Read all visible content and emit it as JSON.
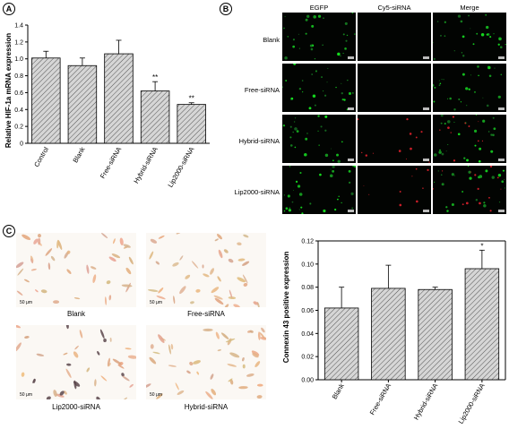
{
  "panels": {
    "a": "A",
    "b": "B",
    "c": "C"
  },
  "panel_b": {
    "columns": [
      "EGFP",
      "Cy5-siRNA",
      "Merge"
    ],
    "rows": [
      "Blank",
      "Free-siRNA",
      "Hybrid-siRNA",
      "Lip2000-siRNA"
    ]
  },
  "panel_c_images": {
    "captions": [
      "Blank",
      "Free-siRNA",
      "Lip2000-siRNA",
      "Hybrid-siRNA"
    ],
    "scale_bar": "50 μm"
  },
  "chart_data": [
    {
      "type": "bar",
      "ylabel": "Relative HIF-1a mRNA expression",
      "xlabel": "",
      "categories": [
        "Control",
        "Blank",
        "Free-siRNA",
        "Hybrid-siRNA",
        "Lip2000-siRNA"
      ],
      "values": [
        1.01,
        0.92,
        1.06,
        0.62,
        0.46
      ],
      "errors": [
        0.08,
        0.09,
        0.16,
        0.11,
        0.02
      ],
      "significance": [
        "",
        "",
        "",
        "**",
        "**"
      ],
      "ylim": [
        0,
        1.4
      ],
      "yticks": [
        "0",
        "0.2",
        "0.4",
        "0.6",
        "0.8",
        "1.0",
        "1.2",
        "1.4"
      ],
      "fill_pattern": "diagonal-hatch",
      "bar_color": "#d4d4d4"
    },
    {
      "type": "bar",
      "ylabel": "Connexin 43 positive expression",
      "xlabel": "",
      "categories": [
        "Blank",
        "Free-siRNA",
        "Hybrid-siRNA",
        "Lip2000-siRNA"
      ],
      "values": [
        0.062,
        0.079,
        0.078,
        0.096
      ],
      "errors": [
        0.018,
        0.02,
        0.002,
        0.016
      ],
      "significance": [
        "",
        "",
        "",
        "*"
      ],
      "ylim": [
        0,
        0.12
      ],
      "yticks": [
        "0.00",
        "0.02",
        "0.04",
        "0.06",
        "0.08",
        "0.10",
        "0.12"
      ],
      "fill_pattern": "diagonal-hatch",
      "bar_color": "#d4d4d4"
    }
  ]
}
